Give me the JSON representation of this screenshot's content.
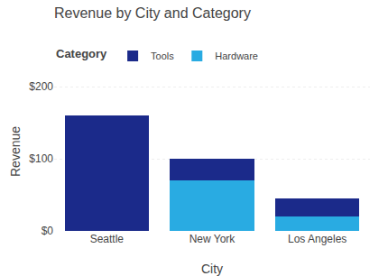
{
  "chart_data": {
    "type": "bar",
    "stacked": true,
    "title": "Revenue by City and Category",
    "xlabel": "City",
    "ylabel": "Revenue",
    "legend_title": "Category",
    "legend": "upper left",
    "categories": [
      "Seattle",
      "New York",
      "Los Angeles"
    ],
    "series": [
      {
        "name": "Hardware",
        "color": "#29ABE2",
        "values": [
          0,
          70,
          20
        ]
      },
      {
        "name": "Tools",
        "color": "#1B2A8A",
        "values": [
          160,
          30,
          25
        ]
      }
    ],
    "ylim": [
      0,
      220
    ],
    "yticks": [
      {
        "value": 0,
        "label": "$0"
      },
      {
        "value": 100,
        "label": "$100"
      },
      {
        "value": 200,
        "label": "$200"
      }
    ],
    "grid": true
  }
}
